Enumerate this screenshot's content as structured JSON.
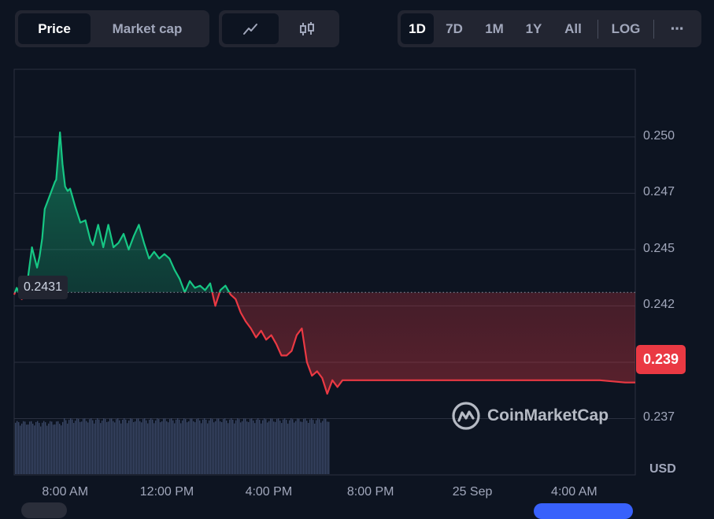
{
  "controls": {
    "tabs": [
      "Price",
      "Market cap"
    ],
    "active_tab": "Price",
    "chart_types": [
      "line-chart-icon",
      "candlestick-icon"
    ],
    "ranges": [
      "1D",
      "7D",
      "1M",
      "1Y",
      "All"
    ],
    "active_range": "1D",
    "log_label": "LOG",
    "more_label": "⋯"
  },
  "badges": {
    "current_price": "0.239",
    "reference_price": "0.2431"
  },
  "watermark": "CoinMarketCap",
  "currency": "USD",
  "colors": {
    "up": "#16c784",
    "down": "#ea3943",
    "background": "#0d1421",
    "volume": "#3a4766"
  },
  "chart_data": {
    "type": "line",
    "title": "",
    "xlabel": "",
    "ylabel": "",
    "y_ticks": [
      "0.250",
      "0.247",
      "0.245",
      "0.242",
      "0.237"
    ],
    "y_tick_values": [
      0.25,
      0.2475,
      0.245,
      0.2425,
      0.2375
    ],
    "x_ticks": [
      "8:00 AM",
      "12:00 PM",
      "4:00 PM",
      "8:00 PM",
      "25 Sep",
      "4:00 AM"
    ],
    "x_tick_hours": [
      8,
      12,
      16,
      20,
      24,
      28
    ],
    "ylim": [
      0.235,
      0.253
    ],
    "xlim_hours": [
      6.0,
      30.4
    ],
    "reference_value": 0.2431,
    "grid": true,
    "series": [
      {
        "x": [
          6.0,
          6.1,
          6.3,
          6.5,
          6.7,
          6.9,
          7.0,
          7.1,
          7.2,
          7.4,
          7.5,
          7.6,
          7.65,
          7.8,
          7.9,
          8.0,
          8.1,
          8.2,
          8.4,
          8.6,
          8.8,
          9.0,
          9.1,
          9.3,
          9.5,
          9.7,
          9.9,
          10.1,
          10.3,
          10.5,
          10.7,
          10.9,
          11.1,
          11.3,
          11.5,
          11.7,
          11.9,
          12.1,
          12.3,
          12.5,
          12.7,
          12.9,
          13.1,
          13.3,
          13.5,
          13.7,
          13.9,
          14.1,
          14.3,
          14.5,
          14.7,
          14.9,
          15.1,
          15.3,
          15.5,
          15.7,
          15.9,
          16.1,
          16.3,
          16.5,
          16.7,
          16.9,
          17.1,
          17.3,
          17.5,
          17.7,
          17.9,
          18.1,
          18.3,
          18.5,
          18.7,
          18.9,
          19.1,
          19.3,
          19.5,
          19.7,
          19.9,
          20.1,
          21.0,
          22.0,
          23.0,
          24.0,
          25.0,
          26.0,
          27.0,
          28.0,
          29.0,
          30.0,
          30.4
        ],
        "y": [
          0.243,
          0.2433,
          0.2428,
          0.2434,
          0.2451,
          0.2442,
          0.2447,
          0.2455,
          0.2468,
          0.2474,
          0.2477,
          0.248,
          0.2481,
          0.2502,
          0.2488,
          0.2478,
          0.2476,
          0.2477,
          0.2469,
          0.2462,
          0.2463,
          0.2454,
          0.2452,
          0.2461,
          0.2451,
          0.2461,
          0.2451,
          0.2453,
          0.2457,
          0.245,
          0.2456,
          0.2461,
          0.2453,
          0.2446,
          0.2449,
          0.2446,
          0.2448,
          0.2446,
          0.2441,
          0.2437,
          0.2431,
          0.2436,
          0.2433,
          0.2434,
          0.2432,
          0.2435,
          0.2425,
          0.2432,
          0.2434,
          0.243,
          0.2428,
          0.2422,
          0.2418,
          0.2415,
          0.2411,
          0.2414,
          0.241,
          0.2412,
          0.2408,
          0.2403,
          0.2403,
          0.2405,
          0.2412,
          0.2415,
          0.24,
          0.2394,
          0.2396,
          0.2393,
          0.2386,
          0.2392,
          0.2389,
          0.2392,
          0.2392,
          0.2392,
          0.2392,
          0.2392,
          0.2392,
          0.2392,
          0.2392,
          0.2392,
          0.2392,
          0.2392,
          0.2392,
          0.2392,
          0.2392,
          0.2392,
          0.2392,
          0.2391,
          0.2391
        ]
      }
    ]
  }
}
